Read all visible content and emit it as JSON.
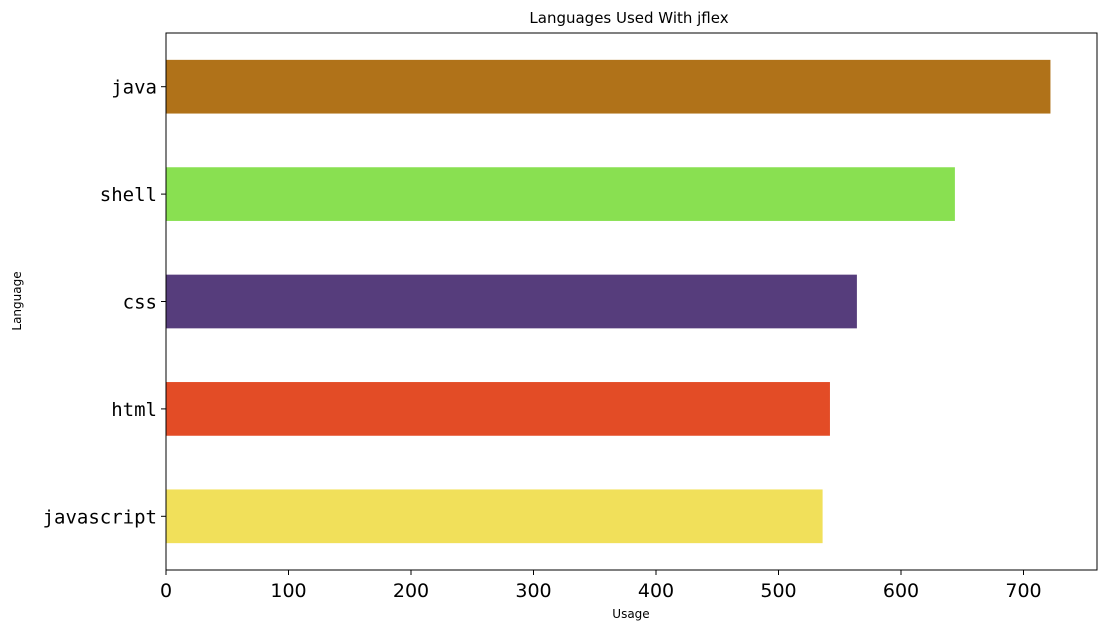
{
  "chart_data": {
    "type": "bar",
    "orientation": "horizontal",
    "title": "Languages Used With jflex",
    "xlabel": "Usage",
    "ylabel": "Language",
    "xlim": [
      0,
      760
    ],
    "x_ticks": [
      0,
      100,
      200,
      300,
      400,
      500,
      600,
      700
    ],
    "grid": false,
    "categories": [
      "java",
      "shell",
      "css",
      "html",
      "javascript"
    ],
    "values": [
      722,
      644,
      564,
      542,
      536
    ],
    "colors": [
      "#b07219",
      "#89e051",
      "#563d7c",
      "#e34c26",
      "#f1e05a"
    ]
  }
}
